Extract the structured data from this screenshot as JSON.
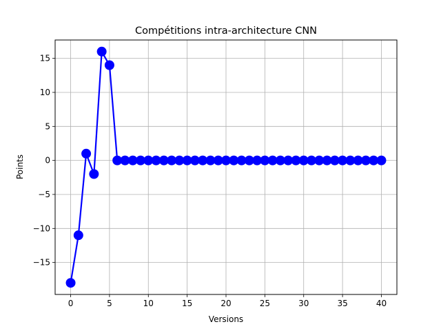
{
  "chart_data": {
    "type": "line",
    "title": "Compétitions intra-architecture CNN",
    "xlabel": "Versions",
    "ylabel": "Points",
    "xlim": [
      -2,
      42
    ],
    "ylim": [
      -19.7,
      17.7
    ],
    "xticks": [
      0,
      5,
      10,
      15,
      20,
      25,
      30,
      35,
      40
    ],
    "yticks": [
      -15,
      -10,
      -5,
      0,
      5,
      10,
      15
    ],
    "ytick_labels": [
      "−15",
      "−10",
      "−5",
      "0",
      "5",
      "10",
      "15"
    ],
    "grid": true,
    "series": [
      {
        "color": "#0000ff",
        "marker": "circle",
        "x": [
          0,
          1,
          2,
          3,
          4,
          5,
          6,
          7,
          8,
          9,
          10,
          11,
          12,
          13,
          14,
          15,
          16,
          17,
          18,
          19,
          20,
          21,
          22,
          23,
          24,
          25,
          26,
          27,
          28,
          29,
          30,
          31,
          32,
          33,
          34,
          35,
          36,
          37,
          38,
          39,
          40
        ],
        "values": [
          -18,
          -11,
          1,
          -2,
          16,
          14,
          0,
          0,
          0,
          0,
          0,
          0,
          0,
          0,
          0,
          0,
          0,
          0,
          0,
          0,
          0,
          0,
          0,
          0,
          0,
          0,
          0,
          0,
          0,
          0,
          0,
          0,
          0,
          0,
          0,
          0,
          0,
          0,
          0,
          0,
          0
        ]
      }
    ]
  }
}
